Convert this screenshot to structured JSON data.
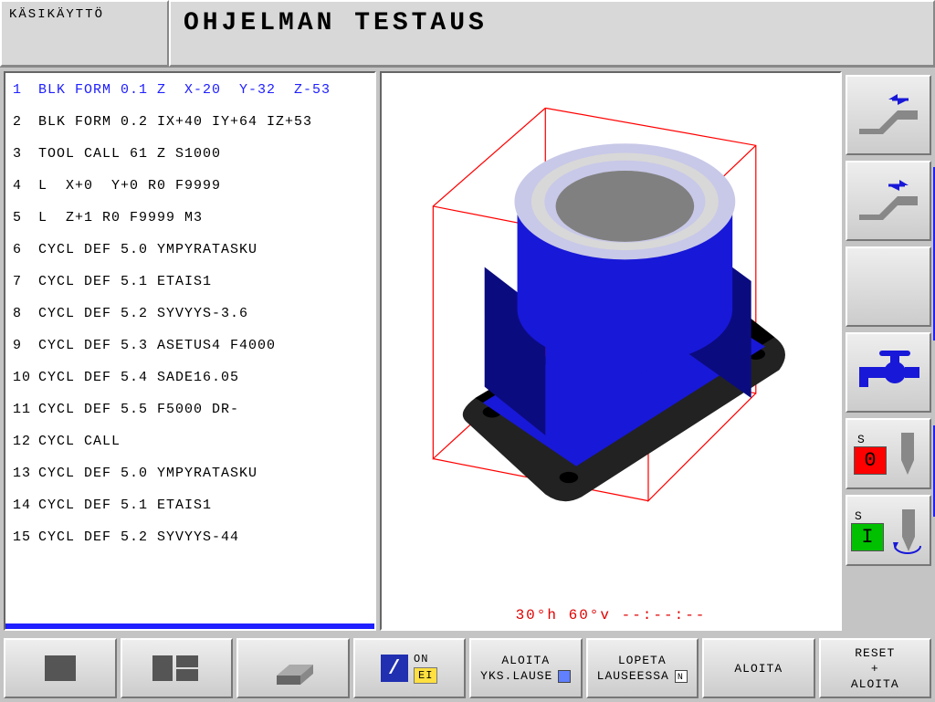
{
  "header": {
    "mode": "KÄSIKÄYTTÖ",
    "title": "OHJELMAN TESTAUS"
  },
  "code": {
    "highlight_index": 0,
    "lines": [
      {
        "n": "1",
        "t": "BLK FORM 0.1 Z  X-20  Y-32  Z-53"
      },
      {
        "n": "2",
        "t": "BLK FORM 0.2 IX+40 IY+64 IZ+53"
      },
      {
        "n": "3",
        "t": "TOOL CALL 61 Z S1000"
      },
      {
        "n": "4",
        "t": "L  X+0  Y+0 R0 F9999"
      },
      {
        "n": "5",
        "t": "L  Z+1 R0 F9999 M3"
      },
      {
        "n": "6",
        "t": "CYCL DEF 5.0 YMPYRATASKU"
      },
      {
        "n": "7",
        "t": "CYCL DEF 5.1 ETAIS1"
      },
      {
        "n": "8",
        "t": "CYCL DEF 5.2 SYVYYS-3.6"
      },
      {
        "n": "9",
        "t": "CYCL DEF 5.3 ASETUS4 F4000"
      },
      {
        "n": "10",
        "t": "CYCL DEF 5.4 SADE16.05"
      },
      {
        "n": "11",
        "t": "CYCL DEF 5.5 F5000 DR-"
      },
      {
        "n": "12",
        "t": "CYCL CALL"
      },
      {
        "n": "13",
        "t": "CYCL DEF 5.0 YMPYRATASKU"
      },
      {
        "n": "14",
        "t": "CYCL DEF 5.1 ETAIS1"
      },
      {
        "n": "15",
        "t": "CYCL DEF 5.2 SYVYYS-44"
      }
    ]
  },
  "viewport": {
    "status": "30°h  60°v  --:--:--",
    "bbox_color": "#ff0000",
    "part_color": "#1818d8",
    "part_light": "#c8c8e8",
    "part_dark": "#0b0b80",
    "ring_outer": "#d8d8d8",
    "ring_inner": "#808080",
    "plate_dark": "#2a2a2a"
  },
  "right": {
    "spindle0": {
      "label": "S",
      "value": "0",
      "bg": "#ff0000",
      "fg": "#000000"
    },
    "spindle1": {
      "label": "S",
      "value": "I",
      "bg": "#00c000",
      "fg": "#000000"
    },
    "tool_color": "#888888",
    "arrow_color": "#1818d8",
    "faucet_color": "#1818d8"
  },
  "bottom": {
    "on_label": "ON",
    "ei_label": "EI",
    "ei_bg": "#ffe040",
    "b4_l1": "ALOITA",
    "b4_l2": "YKS.LAUSE",
    "b4_ind": "#6080ff",
    "b5_l1": "LOPETA",
    "b5_l2": "LAUSEESSA",
    "b5_letter": "N",
    "b5_ind": "#ffffff",
    "b6": "ALOITA",
    "b7_l1": "RESET",
    "b7_l2": "+",
    "b7_l3": "ALOITA",
    "solid_color": "#555555",
    "slash_bg": "#2030b0"
  }
}
